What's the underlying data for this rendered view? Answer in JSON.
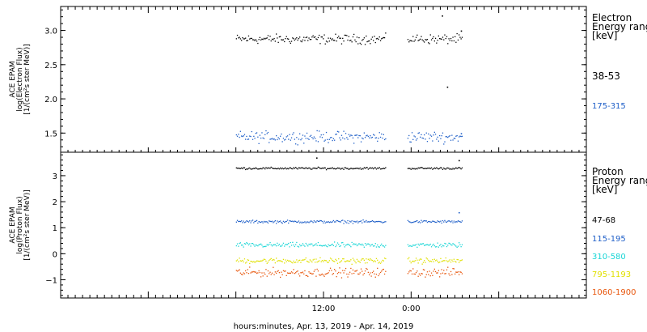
{
  "chart_data": [
    {
      "type": "scatter",
      "panel": "electron",
      "ylabel": [
        "ACE EPAM",
        "log(Electron Flux)",
        "[1/(cm²s ster MeV)]"
      ],
      "yticks": [
        1.5,
        2.0,
        2.5,
        3.0
      ],
      "ytick_labels": [
        "1.5",
        "2.0",
        "2.5",
        "3.0"
      ],
      "ylim": [
        1.22,
        3.35
      ],
      "legend_title": [
        "Electron",
        "Energy range",
        "[keV]"
      ],
      "series": [
        {
          "name": "38-53",
          "color": "#000000",
          "mean": 2.88,
          "spread": 0.05,
          "events": [
            {
              "x": 52.2,
              "y": 3.22
            },
            {
              "x": 52.9,
              "y": 2.18
            },
            {
              "x": 54.8,
              "y": 3.0
            }
          ]
        },
        {
          "name": "175-315",
          "color": "#1f5fc8",
          "mean": 1.45,
          "spread": 0.06,
          "events": [
            {
              "x": 54.8,
              "y": 1.5
            }
          ]
        }
      ]
    },
    {
      "type": "scatter",
      "panel": "proton",
      "ylabel": [
        "ACE EPAM",
        "log(Proton Flux)",
        "[1/(cm²s ster MeV)]"
      ],
      "yticks": [
        -1,
        0,
        1,
        2,
        3
      ],
      "ytick_labels": [
        "−1",
        "0",
        "1",
        "2",
        "3"
      ],
      "ylim": [
        -1.7,
        3.9
      ],
      "legend_title": [
        "Proton",
        "Energy range",
        "[keV]"
      ],
      "series": [
        {
          "name": "47-68",
          "color": "#000000",
          "mean": 3.3,
          "spread": 0.03,
          "events": [
            {
              "x": 35.0,
              "y": 3.7
            },
            {
              "x": 54.5,
              "y": 3.6
            }
          ]
        },
        {
          "name": "115-195",
          "color": "#1f5fc8",
          "mean": 1.25,
          "spread": 0.04,
          "events": [
            {
              "x": 54.5,
              "y": 1.6
            }
          ]
        },
        {
          "name": "310-580",
          "color": "#19d6d6",
          "mean": 0.35,
          "spread": 0.07,
          "events": []
        },
        {
          "name": "795-1193",
          "color": "#e0e000",
          "mean": -0.25,
          "spread": 0.08,
          "events": []
        },
        {
          "name": "1060-1900",
          "color": "#e8560c",
          "mean": -0.7,
          "spread": 0.12,
          "events": []
        }
      ]
    }
  ],
  "x_axis": {
    "start": "2019-04-13 00:00",
    "hours_span": 72,
    "tick_labels": [
      {
        "hour": 36,
        "label": "12:00"
      },
      {
        "hour": 48,
        "label": "0:00"
      }
    ],
    "xlabel": "hours:minutes, Apr. 13, 2019 - Apr. 14, 2019",
    "data_segments": [
      [
        24.0,
        44.5
      ],
      [
        47.5,
        55.0
      ]
    ]
  }
}
